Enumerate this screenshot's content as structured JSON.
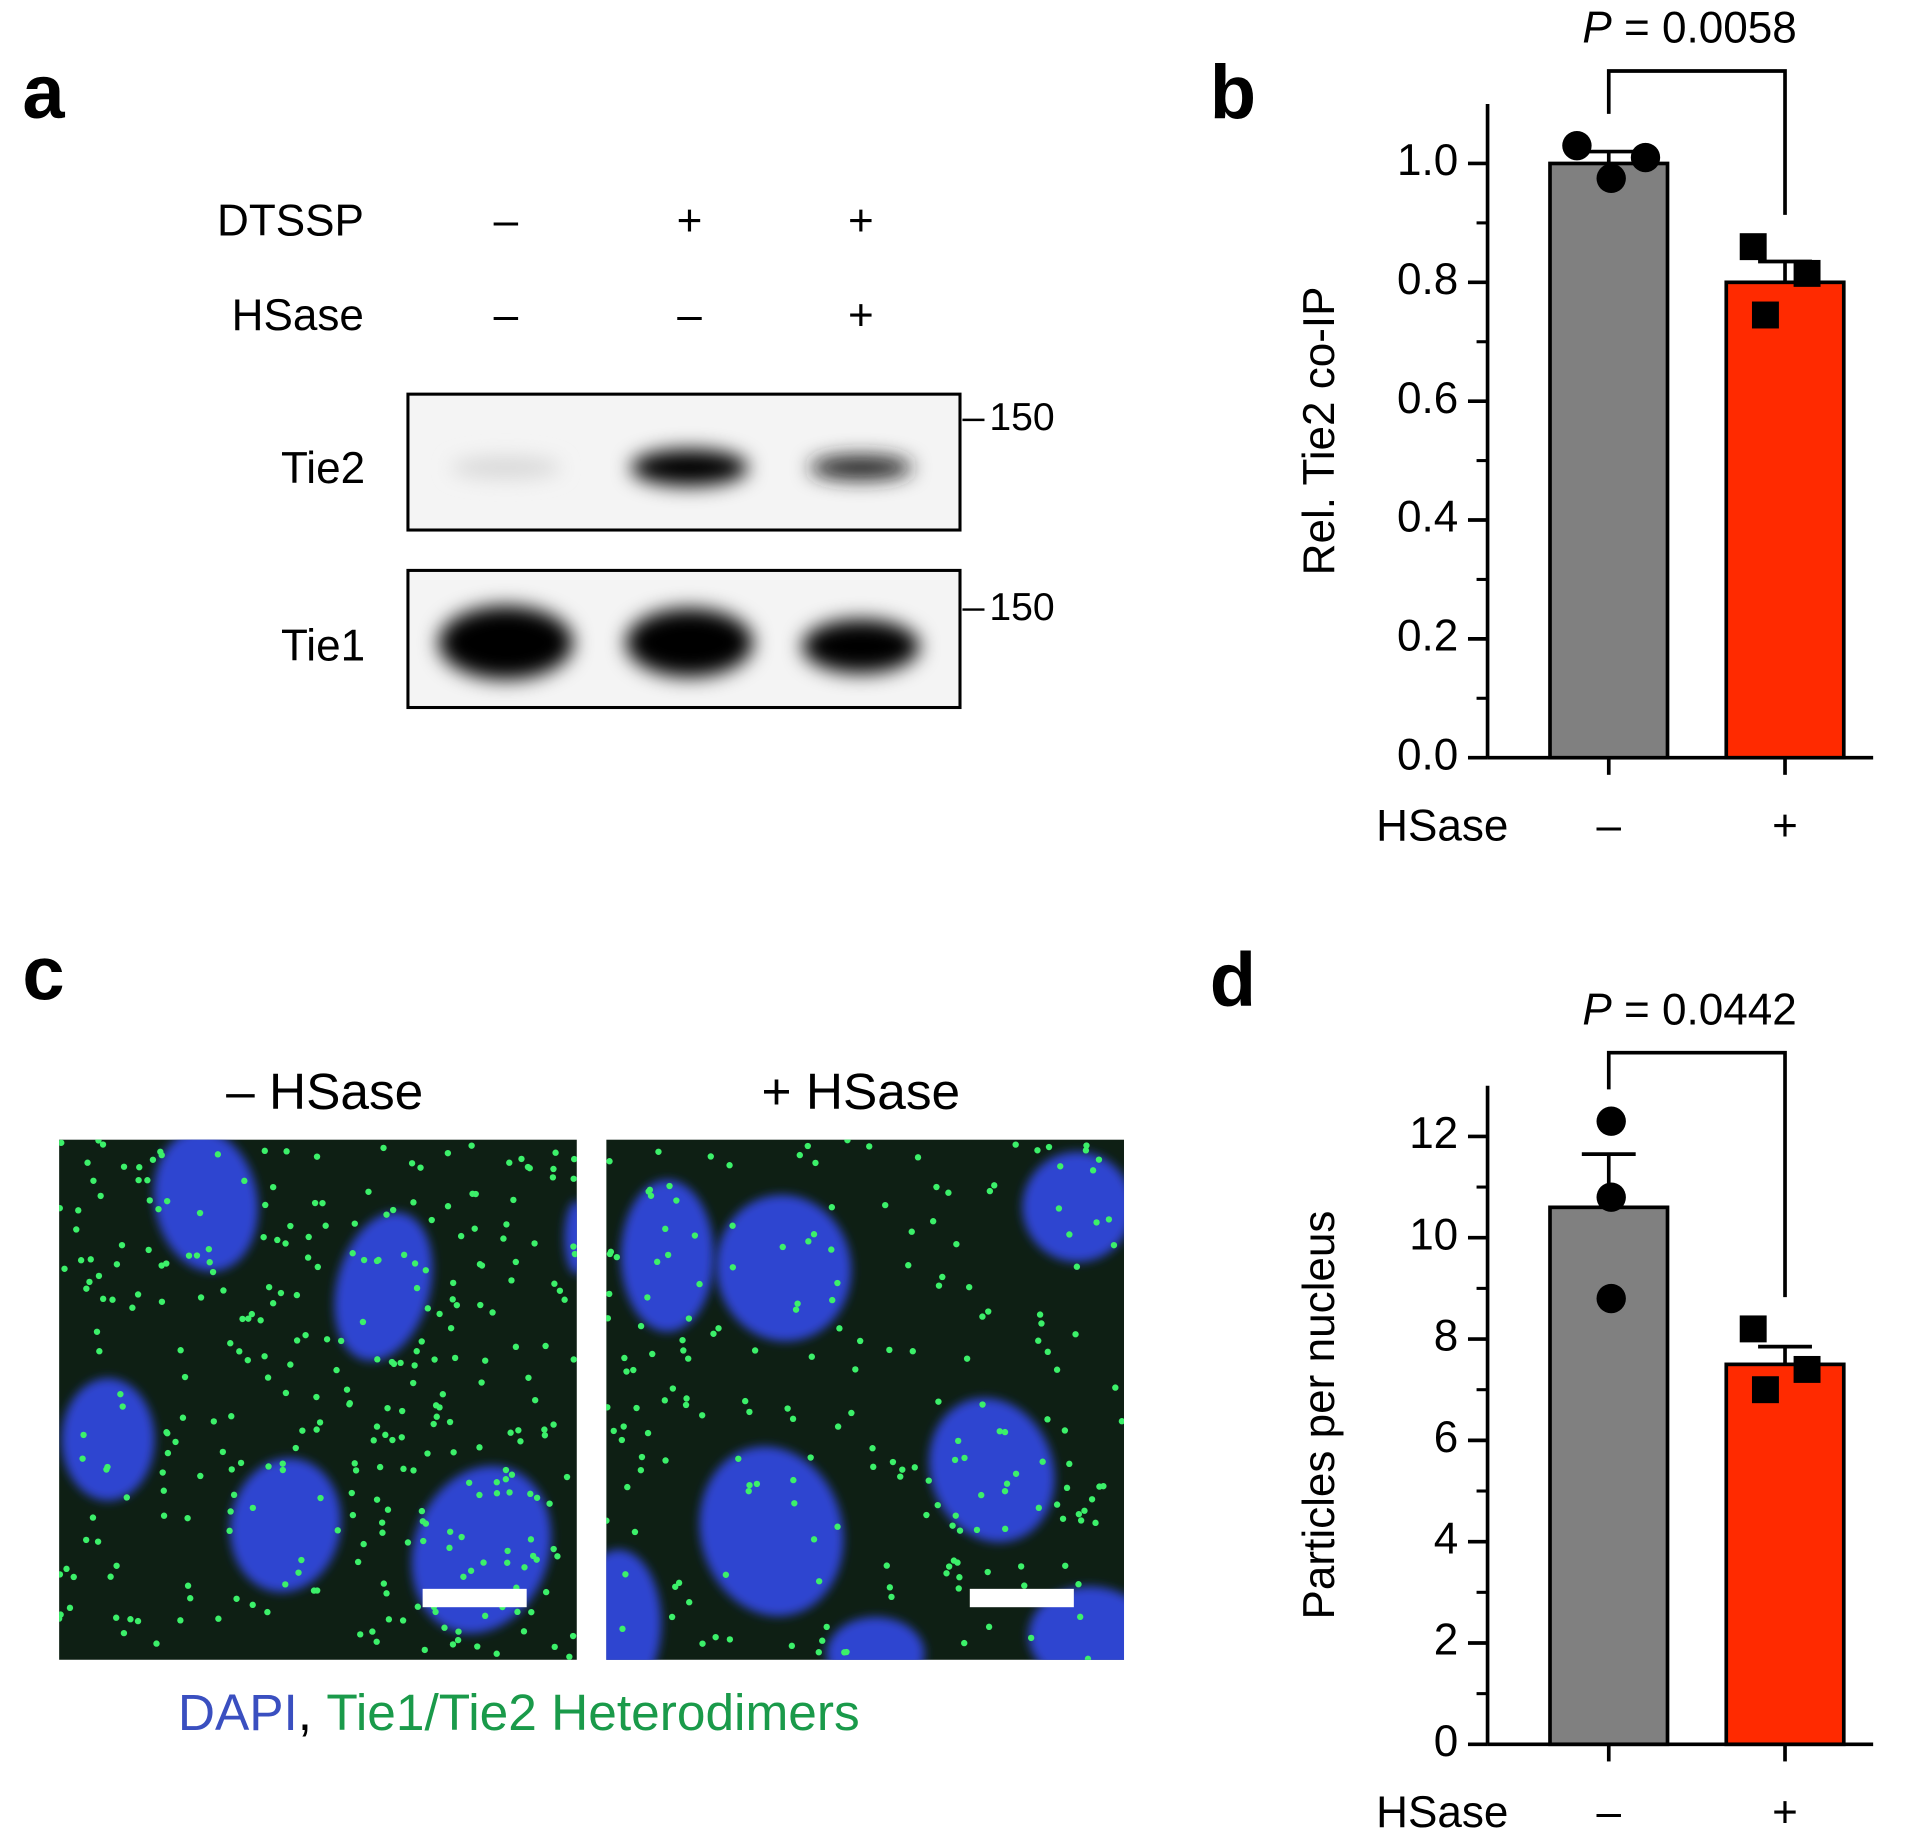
{
  "panel_labels": [
    "a",
    "b",
    "c",
    "d"
  ],
  "panel_a": {
    "row_labels": [
      "DTSSP",
      "HSase"
    ],
    "conditions": [
      [
        "–",
        "+",
        "+"
      ],
      [
        "–",
        "–",
        "+"
      ]
    ],
    "blot_labels": [
      "Tie2",
      "Tie1"
    ],
    "markers": [
      "150",
      "150"
    ]
  },
  "panel_c": {
    "image_labels": [
      "– HSase",
      "+ HSase"
    ],
    "caption": [
      "DAPI",
      ",",
      "Tie1/Tie2 Heterodimers"
    ]
  },
  "chart_data": [
    {
      "type": "bar",
      "annotation": {
        "symbol": "P",
        "text": "= 0.0058"
      },
      "ylabel": "Rel. Tie2 co-IP",
      "xlabel": "HSase",
      "categories": [
        "–",
        "+"
      ],
      "values": [
        1.0,
        0.8
      ],
      "errors": [
        0.02,
        0.035
      ],
      "colors": [
        "#808080",
        "#ff2a00"
      ],
      "points": [
        [
          1.03,
          0.975,
          1.01
        ],
        [
          0.86,
          0.815,
          0.745
        ]
      ],
      "markers": [
        "circle",
        "square"
      ],
      "ylim": [
        0,
        1.1
      ],
      "yticks": [
        {
          "value": 0,
          "label": "0.0"
        },
        0.2,
        0.4,
        0.6,
        0.8,
        {
          "value": 1,
          "label": "1.0"
        }
      ],
      "yminorticks": [
        0.1,
        0.3,
        0.5,
        0.7,
        0.9
      ]
    },
    {
      "type": "bar",
      "annotation": {
        "symbol": "P",
        "text": "= 0.0442"
      },
      "ylabel": "Particles per nucleus",
      "xlabel": "HSase",
      "categories": [
        "–",
        "+"
      ],
      "values": [
        10.6,
        7.5
      ],
      "errors": [
        1.05,
        0.35
      ],
      "colors": [
        "#808080",
        "#ff2a00"
      ],
      "points": [
        [
          12.3,
          10.8,
          8.8
        ],
        [
          8.2,
          7.4,
          7.0
        ]
      ],
      "markers": [
        "circle",
        "square"
      ],
      "ylim": [
        0,
        13
      ],
      "yticks": [
        0,
        2,
        4,
        6,
        8,
        10,
        12
      ],
      "yminorticks": [
        1,
        3,
        5,
        7,
        9,
        11
      ]
    }
  ]
}
